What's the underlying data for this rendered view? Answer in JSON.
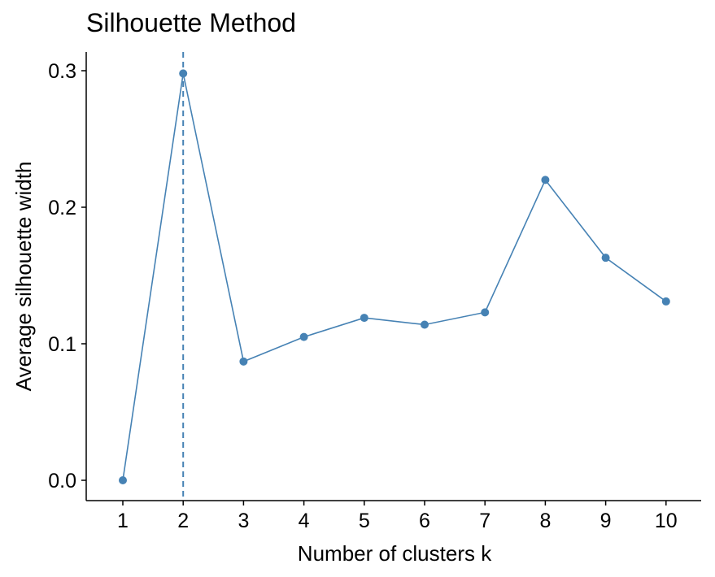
{
  "chart_data": {
    "type": "line",
    "title": "Silhouette Method",
    "xlabel": "Number of clusters k",
    "ylabel": "Average silhouette width",
    "x": [
      1,
      2,
      3,
      4,
      5,
      6,
      7,
      8,
      9,
      10
    ],
    "series": [
      {
        "values": [
          0.0,
          0.298,
          0.087,
          0.105,
          0.119,
          0.114,
          0.123,
          0.22,
          0.163,
          0.131
        ]
      }
    ],
    "ylim": [
      -0.015,
      0.31
    ],
    "yticks": [
      0.0,
      0.1,
      0.2,
      0.3
    ],
    "ytick_labels": [
      "0.0",
      "0.1",
      "0.2",
      "0.3"
    ],
    "optimal_k": 2,
    "grid": false,
    "colors": {
      "line": "#4682B4",
      "vline": "#4682B4",
      "axis": "#000000"
    }
  }
}
